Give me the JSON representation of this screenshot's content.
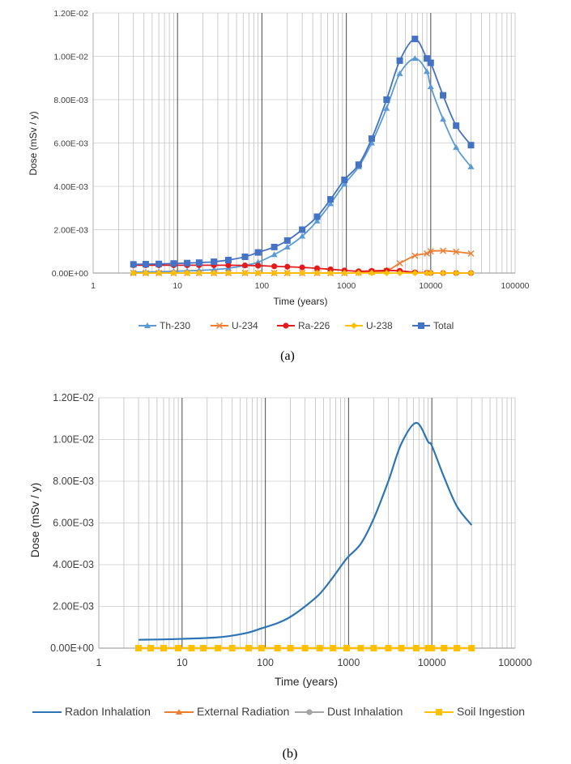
{
  "chart_data": [
    {
      "type": "line",
      "caption": "(a)",
      "xscale": "log",
      "xlim": [
        1,
        100000
      ],
      "ylim": [
        0,
        0.012
      ],
      "xlabel": "Time (years)",
      "ylabel": "Dose (mSv / y)",
      "x_tick_labels": [
        "1",
        "10",
        "100",
        "1000",
        "10000",
        "100000"
      ],
      "y_tick_labels": [
        "0.00E+00",
        "2.00E-03",
        "4.00E-03",
        "6.00E-03",
        "8.00E-03",
        "1.00E-02",
        "1.20E-02"
      ],
      "legend_position": "bottom",
      "x": [
        3,
        4.2,
        6,
        9,
        13,
        18,
        27,
        40,
        63,
        90,
        140,
        200,
        300,
        450,
        650,
        950,
        1400,
        2000,
        3000,
        4300,
        6500,
        9000,
        10000,
        14000,
        20000,
        30000
      ],
      "series": [
        {
          "name": "Th-230",
          "color": "#5b9bd5",
          "marker": "triangle",
          "values": [
            4e-05,
            5e-05,
            6e-05,
            8e-05,
            0.0001,
            0.00012,
            0.00016,
            0.00022,
            0.00035,
            0.0005,
            0.00085,
            0.0012,
            0.0017,
            0.0024,
            0.0032,
            0.0041,
            0.0049,
            0.006,
            0.0076,
            0.0092,
            0.0099,
            0.0093,
            0.0086,
            0.0071,
            0.0058,
            0.0049
          ]
        },
        {
          "name": "U-234",
          "color": "#ed7d31",
          "marker": "x",
          "values": [
            0,
            0,
            0,
            0,
            0,
            0,
            0,
            0,
            0,
            0,
            0,
            0,
            0,
            0,
            0,
            0,
            2e-05,
            5e-05,
            0.0001,
            0.00045,
            0.0008,
            0.0009,
            0.001,
            0.00103,
            0.00098,
            0.0009
          ]
        },
        {
          "name": "Ra-226",
          "color": "#e41a1c",
          "marker": "circle",
          "values": [
            0.00036,
            0.00036,
            0.00036,
            0.00036,
            0.00036,
            0.00036,
            0.00036,
            0.00036,
            0.00035,
            0.00034,
            0.00031,
            0.00029,
            0.00026,
            0.00022,
            0.00017,
            0.00012,
            8e-05,
            0.0001,
            0.00012,
            0.0001,
            3e-05,
            1e-05,
            0,
            0,
            0,
            0
          ]
        },
        {
          "name": "U-238",
          "color": "#ffc000",
          "marker": "diamond",
          "values": [
            0,
            0,
            0,
            0,
            0,
            0,
            0,
            0,
            0,
            0,
            0,
            0,
            0,
            0,
            0,
            0,
            0,
            0,
            0,
            0,
            0,
            0,
            0,
            0,
            0,
            0
          ]
        },
        {
          "name": "Total",
          "color": "#4472c4",
          "marker": "square",
          "values": [
            0.0004,
            0.00041,
            0.00042,
            0.00044,
            0.00046,
            0.00048,
            0.00052,
            0.0006,
            0.00075,
            0.00095,
            0.0012,
            0.0015,
            0.002,
            0.0026,
            0.0034,
            0.0043,
            0.005,
            0.0062,
            0.008,
            0.0098,
            0.0108,
            0.0099,
            0.0097,
            0.0082,
            0.0068,
            0.0059
          ]
        }
      ]
    },
    {
      "type": "line",
      "caption": "(b)",
      "xscale": "log",
      "xlim": [
        1,
        100000
      ],
      "ylim": [
        0,
        0.012
      ],
      "xlabel": "Time (years)",
      "ylabel": "Dose (mSv / y)",
      "x_tick_labels": [
        "1",
        "10",
        "100",
        "1000",
        "10000",
        "100000"
      ],
      "y_tick_labels": [
        "0.00E+00",
        "2.00E-03",
        "4.00E-03",
        "6.00E-03",
        "8.00E-03",
        "1.00E-02",
        "1.20E-02"
      ],
      "legend_position": "bottom",
      "x": [
        3,
        4.2,
        6,
        9,
        13,
        18,
        27,
        40,
        63,
        90,
        140,
        200,
        300,
        450,
        650,
        950,
        1400,
        2000,
        3000,
        4300,
        6500,
        9000,
        10000,
        14000,
        20000,
        30000
      ],
      "series": [
        {
          "name": "Radon Inhalation",
          "color": "#2e75b6",
          "marker": "none",
          "values": [
            0.0004,
            0.00041,
            0.00042,
            0.00044,
            0.00046,
            0.00048,
            0.00052,
            0.0006,
            0.00075,
            0.00095,
            0.0012,
            0.0015,
            0.002,
            0.0026,
            0.0034,
            0.0043,
            0.005,
            0.0062,
            0.008,
            0.0098,
            0.0108,
            0.0099,
            0.0097,
            0.0082,
            0.0068,
            0.0059
          ]
        },
        {
          "name": "External Radiation",
          "color": "#ed7d31",
          "marker": "triangle",
          "values": [
            0,
            0,
            0,
            0,
            0,
            0,
            0,
            0,
            0,
            0,
            0,
            0,
            0,
            0,
            0,
            0,
            0,
            0,
            0,
            0,
            0,
            0,
            0,
            0,
            0,
            0
          ]
        },
        {
          "name": "Dust Inhalation",
          "color": "#a5a5a5",
          "marker": "circle",
          "values": [
            0,
            0,
            0,
            0,
            0,
            0,
            0,
            0,
            0,
            0,
            0,
            0,
            0,
            0,
            0,
            0,
            0,
            0,
            0,
            0,
            0,
            0,
            0,
            0,
            0,
            0
          ]
        },
        {
          "name": "Soil Ingestion",
          "color": "#ffc000",
          "marker": "square",
          "values": [
            0,
            0,
            0,
            0,
            0,
            0,
            0,
            0,
            0,
            0,
            0,
            0,
            0,
            0,
            0,
            0,
            0,
            0,
            0,
            0,
            0,
            0,
            0,
            0,
            0,
            0
          ]
        }
      ]
    }
  ]
}
